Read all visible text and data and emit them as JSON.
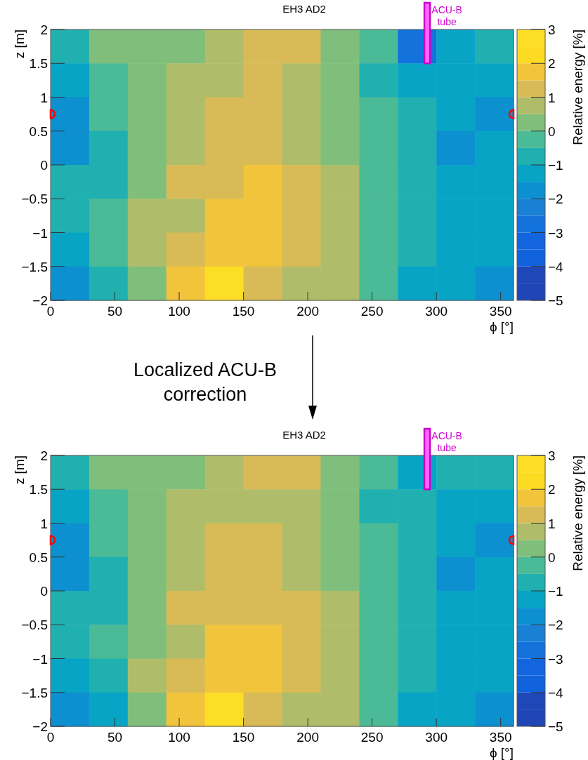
{
  "chart_data": [
    {
      "type": "heatmap",
      "title": "EH3 AD2",
      "xlabel": "ϕ [°]",
      "ylabel": "z [m]",
      "clabel": "Relative energy [%]",
      "xlim": [
        0,
        360
      ],
      "xticks": [
        0,
        50,
        100,
        150,
        200,
        250,
        300,
        350
      ],
      "ylim": [
        -2,
        2
      ],
      "yticks": [
        -2,
        -1.5,
        -1,
        -0.5,
        0,
        0.5,
        1,
        1.5,
        2
      ],
      "clim": [
        -5,
        3
      ],
      "cticks": [
        -5,
        -4,
        -3,
        -2,
        -1,
        0,
        1,
        2,
        3
      ],
      "cells": [
        [
          -0.75,
          0.25,
          0.25,
          0.25,
          0.75,
          1.25,
          1.25,
          0.25,
          -0.25,
          -2.75,
          -1.25,
          -0.75
        ],
        [
          -1.25,
          -0.25,
          0.25,
          0.75,
          0.75,
          1.25,
          0.75,
          0.25,
          -0.75,
          -1.25,
          -1.25,
          -1.25
        ],
        [
          -1.75,
          -0.25,
          0.25,
          0.75,
          1.25,
          1.25,
          0.75,
          0.25,
          -0.25,
          -0.75,
          -1.25,
          -1.75
        ],
        [
          -1.75,
          -0.75,
          0.25,
          0.75,
          1.25,
          1.25,
          0.75,
          0.25,
          -0.25,
          -0.75,
          -1.75,
          -1.25
        ],
        [
          -0.75,
          -0.75,
          0.25,
          1.25,
          1.25,
          1.75,
          1.25,
          0.75,
          -0.25,
          -0.75,
          -1.25,
          -1.25
        ],
        [
          -0.75,
          -0.25,
          0.75,
          0.75,
          1.75,
          1.75,
          1.25,
          0.75,
          -0.25,
          -0.75,
          -1.25,
          -1.25
        ],
        [
          -1.25,
          -0.25,
          0.75,
          1.25,
          1.75,
          1.75,
          1.25,
          0.75,
          -0.25,
          -0.75,
          -1.25,
          -1.25
        ],
        [
          -1.75,
          -0.75,
          0.25,
          1.75,
          2.75,
          1.25,
          0.75,
          0.75,
          -0.25,
          -1.25,
          -1.25,
          -1.75
        ]
      ],
      "annotations": [
        "ACU-B tube",
        "Localized ACU-B correction"
      ]
    },
    {
      "type": "heatmap",
      "title": "EH3 AD2",
      "xlabel": "ϕ [°]",
      "ylabel": "z [m]",
      "clabel": "Relative energy [%]",
      "xlim": [
        0,
        360
      ],
      "xticks": [
        0,
        50,
        100,
        150,
        200,
        250,
        300,
        350
      ],
      "ylim": [
        -2,
        2
      ],
      "yticks": [
        -2,
        -1.5,
        -1,
        -0.5,
        0,
        0.5,
        1,
        1.5,
        2
      ],
      "clim": [
        -5,
        3
      ],
      "cticks": [
        -5,
        -4,
        -3,
        -2,
        -1,
        0,
        1,
        2,
        3
      ],
      "cells": [
        [
          -0.75,
          0.25,
          0.25,
          0.25,
          0.75,
          1.25,
          1.25,
          0.25,
          -0.25,
          -1.25,
          -0.75,
          -0.75
        ],
        [
          -1.25,
          -0.25,
          0.25,
          0.75,
          0.75,
          0.75,
          0.75,
          0.25,
          -0.75,
          -0.75,
          -1.25,
          -1.25
        ],
        [
          -1.75,
          -0.25,
          0.25,
          0.75,
          1.25,
          1.25,
          0.75,
          0.25,
          -0.25,
          -0.75,
          -1.25,
          -1.75
        ],
        [
          -1.75,
          -0.75,
          0.25,
          0.75,
          1.25,
          1.25,
          0.75,
          0.25,
          -0.25,
          -0.75,
          -1.75,
          -1.25
        ],
        [
          -0.75,
          -0.75,
          0.25,
          1.25,
          1.25,
          1.25,
          1.25,
          0.75,
          -0.25,
          -0.75,
          -1.25,
          -1.25
        ],
        [
          -0.75,
          -0.25,
          0.25,
          0.75,
          1.75,
          1.75,
          1.25,
          0.75,
          -0.25,
          -0.75,
          -1.25,
          -1.25
        ],
        [
          -1.25,
          -0.75,
          0.75,
          1.25,
          1.75,
          1.75,
          1.25,
          0.75,
          -0.25,
          -0.75,
          -1.25,
          -1.25
        ],
        [
          -1.75,
          -1.25,
          0.25,
          1.75,
          2.75,
          1.25,
          0.75,
          0.75,
          -0.25,
          -1.25,
          -1.25,
          -1.75
        ]
      ],
      "annotations": [
        "ACU-B tube"
      ]
    }
  ]
}
